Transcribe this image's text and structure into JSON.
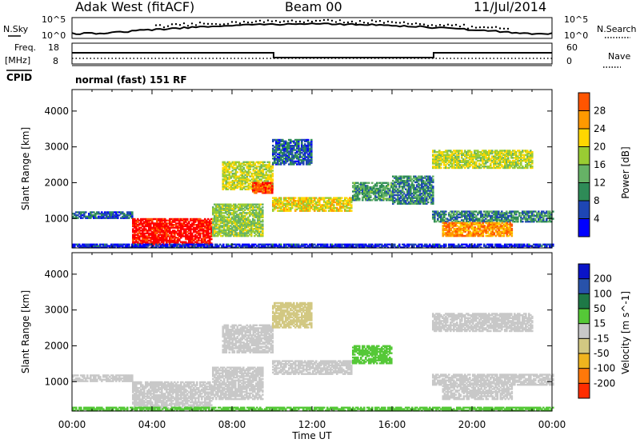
{
  "header": {
    "station": "Adak West (fitACF)",
    "beam": "Beam 00",
    "date": "11/Jul/2014"
  },
  "panels": {
    "sky": {
      "left_label": "N.Sky",
      "right_label": "N.Search",
      "left_ticks": [
        "10^5",
        "10^0"
      ],
      "right_ticks": [
        "10^5",
        "10^0"
      ]
    },
    "freq": {
      "left_label_top": "Freq.",
      "left_label_bottom": "[MHz]",
      "right_label": "Nave",
      "left_ticks": [
        "18",
        "8"
      ],
      "right_ticks": [
        "60",
        "0"
      ]
    },
    "cpid": {
      "label": "CPID",
      "value": "normal (fast) 151 RF"
    }
  },
  "colors": {
    "power": [
      "#0000ff",
      "#1e46b4",
      "#2e8b57",
      "#66b266",
      "#99cc33",
      "#ffd700",
      "#ff9900",
      "#ff5500",
      "#ff0000"
    ],
    "velocity": [
      "#0a14c8",
      "#2852aa",
      "#1e7846",
      "#55c837",
      "#c8c8c8",
      "#d2c882",
      "#f0b41e",
      "#ff780a",
      "#ff2d00",
      "#ff0000"
    ]
  },
  "chart_data": [
    {
      "type": "heatmap",
      "name": "power",
      "ylabel": "Slant Range [km]",
      "xlabel": "Time UT",
      "xlim": [
        0,
        24
      ],
      "ylim": [
        180,
        4600
      ],
      "x_ticks": [
        "00:00",
        "04:00",
        "08:00",
        "12:00",
        "16:00",
        "20:00",
        "00:00"
      ],
      "y_ticks": [
        "1000",
        "2000",
        "3000",
        "4000"
      ],
      "colorbar": {
        "label": "Power [dB]",
        "ticks": [
          "4",
          "8",
          "12",
          "16",
          "20",
          "24",
          "28"
        ],
        "range": [
          0,
          30
        ]
      },
      "regions": [
        {
          "t0": 0.0,
          "t1": 3.0,
          "r0": 1000,
          "r1": 1200,
          "value": 6
        },
        {
          "t0": 3.0,
          "t1": 7.0,
          "r0": 250,
          "r1": 1000,
          "value": 29
        },
        {
          "t0": 7.0,
          "t1": 9.5,
          "r0": 500,
          "r1": 1400,
          "value": 14
        },
        {
          "t0": 7.5,
          "t1": 10.0,
          "r0": 1800,
          "r1": 2600,
          "value": 16
        },
        {
          "t0": 9.0,
          "t1": 10.0,
          "r0": 1700,
          "r1": 2000,
          "value": 26
        },
        {
          "t0": 10.0,
          "t1": 14.0,
          "r0": 1200,
          "r1": 1600,
          "value": 18
        },
        {
          "t0": 14.0,
          "t1": 16.0,
          "r0": 1500,
          "r1": 2000,
          "value": 10
        },
        {
          "t0": 10.0,
          "t1": 12.0,
          "r0": 2500,
          "r1": 3200,
          "value": 6
        },
        {
          "t0": 16.0,
          "t1": 18.0,
          "r0": 1400,
          "r1": 2200,
          "value": 8
        },
        {
          "t0": 18.0,
          "t1": 24.0,
          "r0": 900,
          "r1": 1200,
          "value": 8
        },
        {
          "t0": 18.5,
          "t1": 22.0,
          "r0": 500,
          "r1": 900,
          "value": 22
        },
        {
          "t0": 18.0,
          "t1": 23.0,
          "r0": 2400,
          "r1": 2900,
          "value": 16
        },
        {
          "t0": 0.0,
          "t1": 24.0,
          "r0": 180,
          "r1": 300,
          "value": 3
        }
      ]
    },
    {
      "type": "heatmap",
      "name": "velocity",
      "ylabel": "Slant Range [km]",
      "xlabel": "Time UT",
      "xlim": [
        0,
        24
      ],
      "ylim": [
        180,
        4600
      ],
      "x_ticks": [
        "00:00",
        "04:00",
        "08:00",
        "12:00",
        "16:00",
        "20:00",
        "00:00"
      ],
      "y_ticks": [
        "1000",
        "2000",
        "3000",
        "4000"
      ],
      "colorbar": {
        "label": "Velocity [m s^-1]",
        "ticks": [
          "200",
          "100",
          "50",
          "15",
          "-15",
          "-50",
          "-100",
          "-200"
        ],
        "range": [
          -250,
          250
        ]
      },
      "regions": [
        {
          "t0": 0.0,
          "t1": 3.0,
          "r0": 1000,
          "r1": 1200,
          "value": 0
        },
        {
          "t0": 3.0,
          "t1": 7.0,
          "r0": 250,
          "r1": 1000,
          "value": 0
        },
        {
          "t0": 7.0,
          "t1": 9.5,
          "r0": 500,
          "r1": 1400,
          "value": 0
        },
        {
          "t0": 7.5,
          "t1": 10.0,
          "r0": 1800,
          "r1": 2600,
          "value": 0
        },
        {
          "t0": 10.0,
          "t1": 14.0,
          "r0": 1200,
          "r1": 1600,
          "value": 0
        },
        {
          "t0": 14.0,
          "t1": 16.0,
          "r0": 1500,
          "r1": 2000,
          "value": 40
        },
        {
          "t0": 10.0,
          "t1": 12.0,
          "r0": 2500,
          "r1": 3200,
          "value": -30
        },
        {
          "t0": 18.0,
          "t1": 24.0,
          "r0": 900,
          "r1": 1200,
          "value": 0
        },
        {
          "t0": 18.5,
          "t1": 22.0,
          "r0": 500,
          "r1": 900,
          "value": 0
        },
        {
          "t0": 18.0,
          "t1": 23.0,
          "r0": 2400,
          "r1": 2900,
          "value": 0
        },
        {
          "t0": 0.0,
          "t1": 24.0,
          "r0": 180,
          "r1": 300,
          "value": 40
        }
      ]
    }
  ]
}
